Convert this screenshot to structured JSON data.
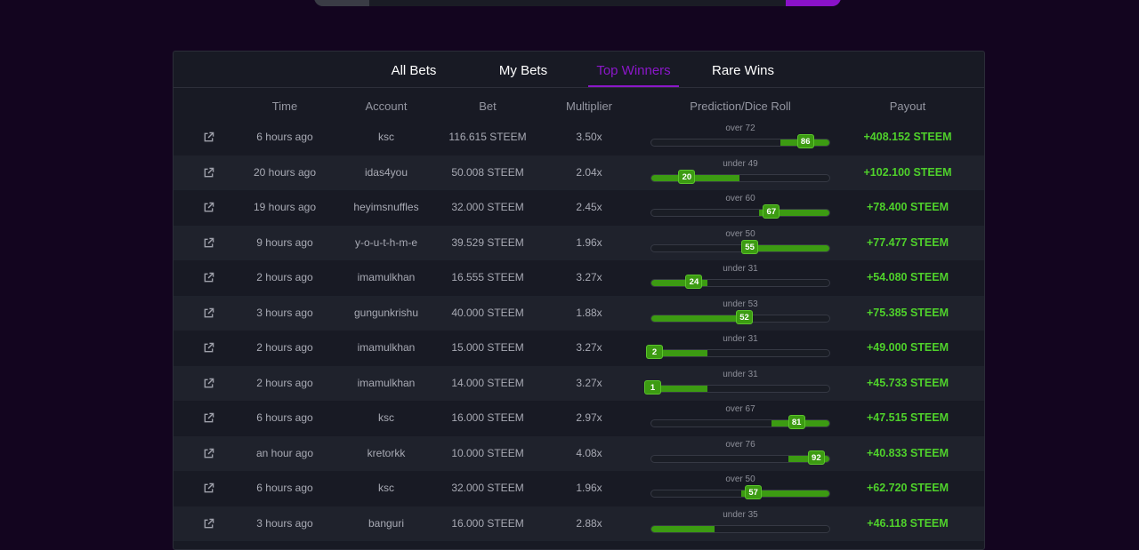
{
  "tabs": [
    "All Bets",
    "My Bets",
    "Top Winners",
    "Rare Wins"
  ],
  "active_tab": "Top Winners",
  "columns": [
    "Time",
    "Account",
    "Bet",
    "Multiplier",
    "Prediction/Dice Roll",
    "Payout"
  ],
  "colors": {
    "accent": "#8b17c9",
    "win": "#4fd12b",
    "bar_fill": "#3c9b12"
  },
  "rows": [
    {
      "time": "6 hours ago",
      "account": "ksc",
      "bet": "116.615 STEEM",
      "multiplier": "3.50x",
      "prediction": "over 72",
      "roll": "86",
      "payout": "+408.152 STEEM"
    },
    {
      "time": "20 hours ago",
      "account": "idas4you",
      "bet": "50.008 STEEM",
      "multiplier": "2.04x",
      "prediction": "under 49",
      "roll": "20",
      "payout": "+102.100 STEEM"
    },
    {
      "time": "19 hours ago",
      "account": "heyimsnuffles",
      "bet": "32.000 STEEM",
      "multiplier": "2.45x",
      "prediction": "over 60",
      "roll": "67",
      "payout": "+78.400 STEEM"
    },
    {
      "time": "9 hours ago",
      "account": "y-o-u-t-h-m-e",
      "bet": "39.529 STEEM",
      "multiplier": "1.96x",
      "prediction": "over 50",
      "roll": "55",
      "payout": "+77.477 STEEM"
    },
    {
      "time": "2 hours ago",
      "account": "imamulkhan",
      "bet": "16.555 STEEM",
      "multiplier": "3.27x",
      "prediction": "under 31",
      "roll": "24",
      "payout": "+54.080 STEEM"
    },
    {
      "time": "3 hours ago",
      "account": "gungunkrishu",
      "bet": "40.000 STEEM",
      "multiplier": "1.88x",
      "prediction": "under 53",
      "roll": "52",
      "payout": "+75.385 STEEM"
    },
    {
      "time": "2 hours ago",
      "account": "imamulkhan",
      "bet": "15.000 STEEM",
      "multiplier": "3.27x",
      "prediction": "under 31",
      "roll": "2",
      "payout": "+49.000 STEEM"
    },
    {
      "time": "2 hours ago",
      "account": "imamulkhan",
      "bet": "14.000 STEEM",
      "multiplier": "3.27x",
      "prediction": "under 31",
      "roll": "1",
      "payout": "+45.733 STEEM"
    },
    {
      "time": "6 hours ago",
      "account": "ksc",
      "bet": "16.000 STEEM",
      "multiplier": "2.97x",
      "prediction": "over 67",
      "roll": "81",
      "payout": "+47.515 STEEM"
    },
    {
      "time": "an hour ago",
      "account": "kretorkk",
      "bet": "10.000 STEEM",
      "multiplier": "4.08x",
      "prediction": "over 76",
      "roll": "92",
      "payout": "+40.833 STEEM"
    },
    {
      "time": "6 hours ago",
      "account": "ksc",
      "bet": "32.000 STEEM",
      "multiplier": "1.96x",
      "prediction": "over 50",
      "roll": "57",
      "payout": "+62.720 STEEM"
    },
    {
      "time": "3 hours ago",
      "account": "banguri",
      "bet": "16.000 STEEM",
      "multiplier": "2.88x",
      "prediction": "under 35",
      "roll": "",
      "payout": "+46.118 STEEM"
    }
  ]
}
